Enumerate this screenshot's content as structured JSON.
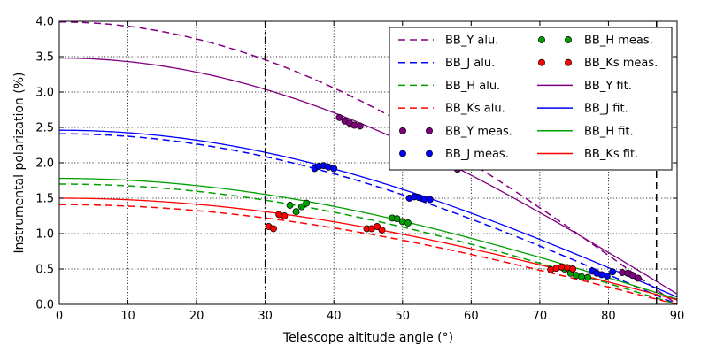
{
  "chart_data": {
    "type": "line",
    "title": "",
    "xlabel": "Telescope altitude angle (°)",
    "ylabel": "Instrumental polarization (%)",
    "xlim": [
      0,
      90
    ],
    "ylim": [
      0,
      4.0
    ],
    "xticks": [
      0,
      10,
      20,
      30,
      40,
      50,
      60,
      70,
      80,
      90
    ],
    "xtick_labels": [
      "0",
      "10",
      "20",
      "30",
      "40",
      "50",
      "60",
      "70",
      "80",
      "90"
    ],
    "yticks": [
      0.0,
      0.5,
      1.0,
      1.5,
      2.0,
      2.5,
      3.0,
      3.5,
      4.0
    ],
    "ytick_labels": [
      "0.0",
      "0.5",
      "1.0",
      "1.5",
      "2.0",
      "2.5",
      "3.0",
      "3.5",
      "4.0"
    ],
    "grid": true,
    "legend_position": "top-right",
    "vlines": [
      {
        "x": 30,
        "style": "dash-dot",
        "color": "#000000"
      },
      {
        "x": 87,
        "style": "dashed",
        "color": "#000000"
      }
    ],
    "colors": {
      "Y": "#800080",
      "J": "#0000ff",
      "H": "#00a000",
      "Ks": "#ff0000"
    },
    "series": [
      {
        "name": "BB_Y alu.",
        "band": "Y",
        "kind": "alu",
        "amplitude": 3.99,
        "zero_at": 90
      },
      {
        "name": "BB_J alu.",
        "band": "J",
        "kind": "alu",
        "amplitude": 2.41,
        "zero_at": 90
      },
      {
        "name": "BB_H alu.",
        "band": "H",
        "kind": "alu",
        "amplitude": 1.7,
        "zero_at": 90
      },
      {
        "name": "BB_Ks alu.",
        "band": "Ks",
        "kind": "alu",
        "amplitude": 1.41,
        "zero_at": 90
      },
      {
        "name": "BB_Y meas.",
        "band": "Y",
        "kind": "meas",
        "points": [
          [
            40.8,
            2.64
          ],
          [
            41.6,
            2.59
          ],
          [
            42.3,
            2.56
          ],
          [
            43.0,
            2.53
          ],
          [
            43.8,
            2.52
          ],
          [
            55.0,
            2.01
          ],
          [
            55.8,
            2.02
          ],
          [
            56.5,
            1.98
          ],
          [
            57.2,
            1.96
          ],
          [
            58.0,
            1.91
          ],
          [
            82.0,
            0.45
          ],
          [
            82.8,
            0.44
          ],
          [
            83.5,
            0.41
          ],
          [
            84.3,
            0.37
          ]
        ]
      },
      {
        "name": "BB_J meas.",
        "band": "J",
        "kind": "meas",
        "points": [
          [
            37.2,
            1.92
          ],
          [
            37.8,
            1.95
          ],
          [
            38.5,
            1.96
          ],
          [
            39.2,
            1.94
          ],
          [
            40.0,
            1.92
          ],
          [
            51.0,
            1.5
          ],
          [
            51.7,
            1.52
          ],
          [
            52.4,
            1.51
          ],
          [
            53.2,
            1.49
          ],
          [
            54.0,
            1.48
          ],
          [
            77.6,
            0.47
          ],
          [
            78.3,
            0.44
          ],
          [
            79.0,
            0.42
          ],
          [
            79.8,
            0.4
          ],
          [
            80.6,
            0.46
          ]
        ]
      },
      {
        "name": "BB_H meas.",
        "band": "H",
        "kind": "meas",
        "points": [
          [
            33.6,
            1.4
          ],
          [
            34.5,
            1.31
          ],
          [
            35.3,
            1.38
          ],
          [
            36.0,
            1.43
          ],
          [
            48.5,
            1.22
          ],
          [
            49.2,
            1.21
          ],
          [
            50.0,
            1.17
          ],
          [
            50.8,
            1.15
          ],
          [
            73.6,
            0.5
          ],
          [
            74.5,
            0.44
          ],
          [
            75.3,
            0.41
          ],
          [
            76.1,
            0.39
          ],
          [
            77.0,
            0.38
          ]
        ]
      },
      {
        "name": "BB_Ks meas.",
        "band": "Ks",
        "kind": "meas",
        "points": [
          [
            30.5,
            1.1
          ],
          [
            31.2,
            1.07
          ],
          [
            32.0,
            1.27
          ],
          [
            32.8,
            1.25
          ],
          [
            44.8,
            1.07
          ],
          [
            45.5,
            1.07
          ],
          [
            46.3,
            1.1
          ],
          [
            47.0,
            1.05
          ],
          [
            71.6,
            0.49
          ],
          [
            72.4,
            0.51
          ],
          [
            73.2,
            0.53
          ],
          [
            74.0,
            0.52
          ],
          [
            74.8,
            0.5
          ]
        ]
      },
      {
        "name": "BB_Y fit.",
        "band": "Y",
        "kind": "fit",
        "amplitude": 3.48,
        "zero_at": 92.5
      },
      {
        "name": "BB_J fit.",
        "band": "J",
        "kind": "fit",
        "amplitude": 2.46,
        "zero_at": 92.5
      },
      {
        "name": "BB_H fit.",
        "band": "H",
        "kind": "fit",
        "amplitude": 1.78,
        "zero_at": 92.5
      },
      {
        "name": "BB_Ks fit.",
        "band": "Ks",
        "kind": "fit",
        "amplitude": 1.5,
        "zero_at": 92.5
      }
    ],
    "legend_columns": [
      [
        "BB_Y alu.",
        "BB_J alu.",
        "BB_H alu.",
        "BB_Ks alu.",
        "BB_Y meas.",
        "BB_J meas."
      ],
      [
        "BB_H meas.",
        "BB_Ks meas.",
        "BB_Y fit.",
        "BB_J fit.",
        "BB_H fit.",
        "BB_Ks fit."
      ]
    ]
  }
}
